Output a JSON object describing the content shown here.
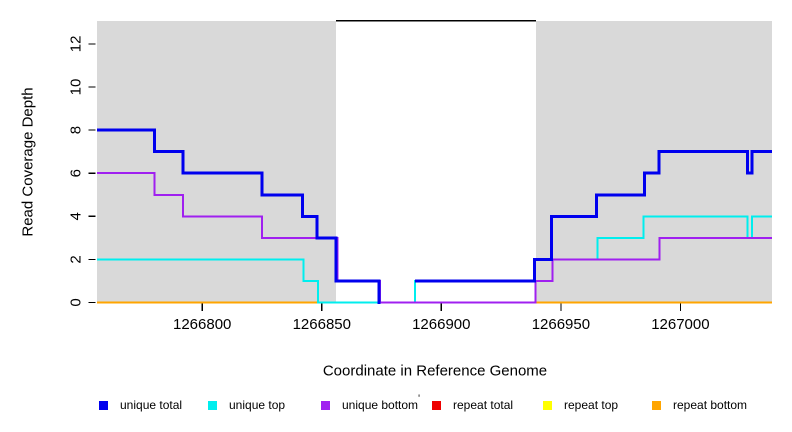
{
  "figure": {
    "title": "",
    "x_axis_label": "Coordinate in Reference Genome",
    "y_axis_label": "Read Coverage Depth"
  },
  "chart_data": {
    "type": "line",
    "subtype": "step-coverage",
    "title": "",
    "xlabel": "Coordinate in Reference Genome",
    "ylabel": "Read Coverage Depth",
    "x_range": [
      1266756,
      1267038.3
    ],
    "y_range": [
      0,
      13.06
    ],
    "x_ticks": [
      1266800,
      1266850,
      1266900,
      1266950,
      1267000
    ],
    "x_tick_labels": [
      "1266800",
      "1266850",
      "1266900",
      "1266950",
      "1267000"
    ],
    "y_ticks": [
      0,
      2,
      4,
      6,
      8,
      10,
      12
    ],
    "grid": false,
    "legend_position": "bottom",
    "background_regions": {
      "color": "#D9D9D9",
      "comment": "shaded repeat-masked flanks; white gap in middle is uncovered span",
      "ranges": [
        [
          1266756,
          1266856
        ],
        [
          1266939.5,
          1267038.3
        ]
      ]
    },
    "uncovered_span": {
      "color": "#000000",
      "x": [
        1266856,
        1266939.5
      ],
      "y": 13.08
    },
    "series": [
      {
        "id": "unique-total",
        "name": "unique total",
        "color": "#0000EE",
        "width": 3,
        "draw_order": 6,
        "segments": [
          {
            "steps": [
              [
                1266756,
                8
              ],
              [
                1266780,
                7
              ],
              [
                1266792,
                6
              ],
              [
                1266825,
                5
              ],
              [
                1266842,
                4
              ],
              [
                1266848,
                3
              ],
              [
                1266856,
                1
              ],
              [
                1266874,
                0
              ]
            ],
            "end": 1266874.5
          },
          {
            "steps": [
              [
                1266889,
                1
              ],
              [
                1266939,
                2
              ],
              [
                1266946,
                4
              ],
              [
                1266965,
                5
              ],
              [
                1266985,
                6
              ],
              [
                1266991,
                7
              ],
              [
                1267028,
                6
              ],
              [
                1267030,
                7
              ]
            ],
            "end": 1267038.3
          }
        ]
      },
      {
        "id": "unique-top",
        "name": "unique top",
        "color": "#00EEEE",
        "width": 2,
        "draw_order": 4,
        "segments": [
          {
            "steps": [
              [
                1266756,
                2
              ],
              [
                1266842.3,
                1
              ],
              [
                1266848.5,
                0
              ],
              [
                1266889,
                1
              ],
              [
                1266946.4,
                2
              ],
              [
                1266965.3,
                3
              ],
              [
                1266984.5,
                4
              ],
              [
                1267028,
                3
              ],
              [
                1267030,
                4
              ]
            ],
            "end": 1267038.3
          }
        ]
      },
      {
        "id": "unique-bottom",
        "name": "unique bottom",
        "color": "#A020F0",
        "width": 2,
        "draw_order": 5,
        "segments": [
          {
            "steps": [
              [
                1266756,
                6
              ],
              [
                1266780,
                5
              ],
              [
                1266792,
                4
              ],
              [
                1266825,
                3
              ],
              [
                1266856.5,
                1
              ],
              [
                1266874.4,
                0
              ],
              [
                1266939.3,
                1
              ],
              [
                1266946.4,
                2
              ],
              [
                1266991.2,
                3
              ]
            ],
            "end": 1267038.3
          }
        ]
      },
      {
        "id": "repeat-total",
        "name": "repeat total",
        "color": "#EE0000",
        "width": 2,
        "draw_order": 1,
        "segments": [
          {
            "steps": [
              [
                1266756,
                0
              ]
            ],
            "end": 1267038.3
          }
        ]
      },
      {
        "id": "repeat-top",
        "name": "repeat top",
        "color": "#FFFF00",
        "width": 2,
        "draw_order": 2,
        "segments": [
          {
            "steps": [
              [
                1266756,
                0
              ]
            ],
            "end": 1267038.3
          }
        ]
      },
      {
        "id": "repeat-bottom",
        "name": "repeat bottom",
        "color": "#FFA500",
        "width": 2,
        "draw_order": 3,
        "segments": [
          {
            "steps": [
              [
                1266756,
                0
              ]
            ],
            "end": 1267038.3
          }
        ]
      }
    ]
  },
  "legend": {
    "stray_mark": "'",
    "items": [
      {
        "id": "unique-total",
        "label": "unique total",
        "color": "#0000EE"
      },
      {
        "id": "unique-top",
        "label": "unique top",
        "color": "#00EEEE"
      },
      {
        "id": "unique-bottom",
        "label": "unique bottom",
        "color": "#A020F0"
      },
      {
        "id": "repeat-total",
        "label": "repeat total",
        "color": "#EE0000"
      },
      {
        "id": "repeat-top",
        "label": "repeat top",
        "color": "#FFFF00"
      },
      {
        "id": "repeat-bottom",
        "label": "repeat bottom",
        "color": "#FFA500"
      }
    ]
  }
}
